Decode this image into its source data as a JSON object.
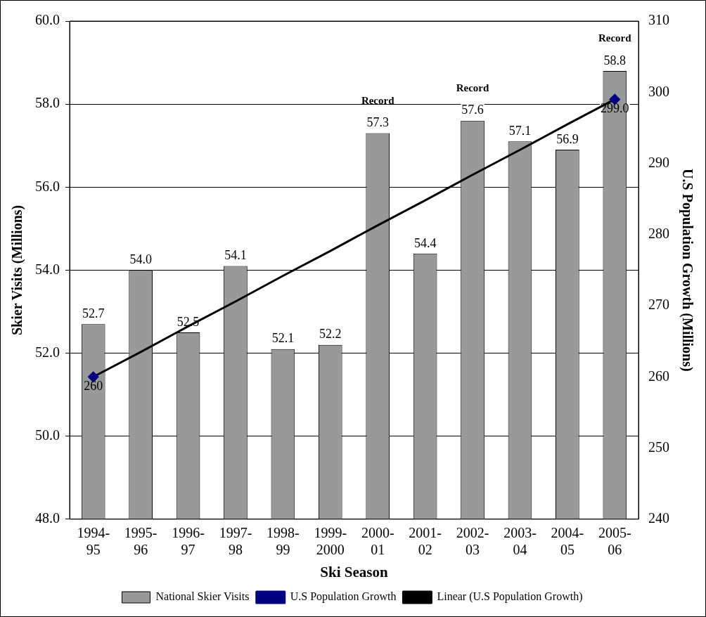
{
  "chart_data": {
    "type": "bar",
    "xlabel": "Ski Season",
    "ylabel": "Skier Visits (Millions)",
    "y2label": "U.S Population Growth (Millions)",
    "categories": [
      "1994-95",
      "1995-96",
      "1996-97",
      "1997-98",
      "1998-99",
      "1999-2000",
      "2000-01",
      "2001-02",
      "2002-03",
      "2003-04",
      "2004-05",
      "2005-06"
    ],
    "series": [
      {
        "name": "National Skier Visits",
        "color": "#999999",
        "values": [
          52.7,
          54.0,
          52.5,
          54.1,
          52.1,
          52.2,
          57.3,
          54.4,
          57.6,
          57.1,
          56.9,
          58.8
        ],
        "value_labels": [
          "52.7",
          "54.0",
          "52.5",
          "54.1",
          "52.1",
          "52.2",
          "57.3",
          "54.4",
          "57.6",
          "57.1",
          "56.9",
          "58.8"
        ]
      },
      {
        "type": "scatter",
        "name": "U.S Population Growth",
        "color": "#000080",
        "axis": "y2",
        "marker": "diamond",
        "values": [
          260,
          null,
          null,
          null,
          null,
          null,
          null,
          null,
          null,
          null,
          null,
          299.0
        ],
        "value_labels": [
          "260",
          null,
          null,
          null,
          null,
          null,
          null,
          null,
          null,
          null,
          null,
          "299.0"
        ]
      },
      {
        "type": "line",
        "name": "Linear (U.S Population Growth)",
        "color": "#000000",
        "axis": "y2",
        "marker": "none",
        "values": [
          260,
          263.5,
          267.1,
          270.6,
          274.2,
          277.7,
          281.3,
          284.8,
          288.4,
          291.9,
          295.5,
          299
        ]
      }
    ],
    "ylim": [
      48,
      60
    ],
    "yticks": [
      {
        "value": 48,
        "label": "48.0"
      },
      {
        "value": 50,
        "label": "50.0"
      },
      {
        "value": 52,
        "label": "52.0"
      },
      {
        "value": 54,
        "label": "54.0"
      },
      {
        "value": 56,
        "label": "56.0"
      },
      {
        "value": 58,
        "label": "58.0"
      },
      {
        "value": 60,
        "label": "60.0"
      }
    ],
    "y2lim": [
      240,
      310
    ],
    "y2ticks": [
      240,
      250,
      260,
      270,
      280,
      290,
      300,
      310
    ],
    "grid": "y",
    "legend": "bottom",
    "annotations": [
      {
        "text": "Record",
        "x": "2000-01",
        "y": 57.3
      },
      {
        "text": "Record",
        "x": "2002-03",
        "y": 57.6
      },
      {
        "text": "Record",
        "x": "2005-06",
        "y": 58.8
      }
    ]
  }
}
